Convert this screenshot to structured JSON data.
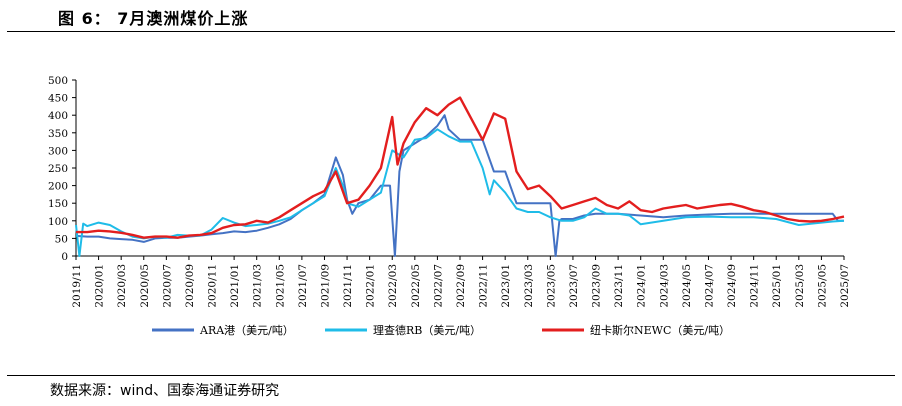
{
  "header": {
    "title": "图 6： 7月澳洲煤价上涨"
  },
  "footer": {
    "source": "数据来源：wind、国泰海通证券研究"
  },
  "chart_data": {
    "type": "line",
    "title": "",
    "xlabel": "",
    "ylabel": "",
    "ylim": [
      0,
      500
    ],
    "yticks": [
      0,
      50,
      100,
      150,
      200,
      250,
      300,
      350,
      400,
      450,
      500
    ],
    "xlim": [
      "2019-11",
      "2025-07"
    ],
    "xticks": [
      "2019/11",
      "2020/01",
      "2020/03",
      "2020/05",
      "2020/07",
      "2020/09",
      "2020/11",
      "2021/01",
      "2021/03",
      "2021/05",
      "2021/07",
      "2021/09",
      "2021/11",
      "2022/01",
      "2022/03",
      "2022/05",
      "2022/07",
      "2022/09",
      "2022/11",
      "2023/01",
      "2023/03",
      "2023/05",
      "2023/07",
      "2023/09",
      "2023/11",
      "2024/01",
      "2024/03",
      "2024/05",
      "2024/07",
      "2024/09",
      "2024/11",
      "2025/01",
      "2025/03",
      "2025/05",
      "2025/07"
    ],
    "grid": false,
    "legend": "bottom",
    "series": [
      {
        "name": "ARA港（美元/吨）",
        "color": "#4472C4",
        "points": [
          [
            "2019-11",
            57
          ],
          [
            "2019-12",
            55
          ],
          [
            "2020-01",
            55
          ],
          [
            "2020-02",
            50
          ],
          [
            "2020-03",
            48
          ],
          [
            "2020-04",
            46
          ],
          [
            "2020-05",
            40
          ],
          [
            "2020-06",
            50
          ],
          [
            "2020-07",
            52
          ],
          [
            "2020-08",
            52
          ],
          [
            "2020-09",
            55
          ],
          [
            "2020-10",
            58
          ],
          [
            "2020-11",
            62
          ],
          [
            "2020-12",
            65
          ],
          [
            "2021-01",
            70
          ],
          [
            "2021-02",
            68
          ],
          [
            "2021-03",
            72
          ],
          [
            "2021-04",
            80
          ],
          [
            "2021-05",
            90
          ],
          [
            "2021-06",
            105
          ],
          [
            "2021-07",
            130
          ],
          [
            "2021-08",
            150
          ],
          [
            "2021-09",
            175
          ],
          [
            "2021-10",
            280
          ],
          [
            "2021-10-20",
            230
          ],
          [
            "2021-11",
            160
          ],
          [
            "2021-11-15",
            120
          ],
          [
            "2021-12",
            150
          ],
          [
            "2022-01",
            160
          ],
          [
            "2022-02",
            200
          ],
          [
            "2022-02-25",
            200
          ],
          [
            "2022-03-08",
            0
          ],
          [
            "2022-03-20",
            240
          ],
          [
            "2022-04",
            300
          ],
          [
            "2022-05",
            320
          ],
          [
            "2022-06",
            340
          ],
          [
            "2022-07",
            370
          ],
          [
            "2022-07-20",
            400
          ],
          [
            "2022-08",
            360
          ],
          [
            "2022-09",
            330
          ],
          [
            "2022-10",
            330
          ],
          [
            "2022-11",
            330
          ],
          [
            "2022-12",
            240
          ],
          [
            "2023-01",
            240
          ],
          [
            "2023-02",
            150
          ],
          [
            "2023-03",
            150
          ],
          [
            "2023-04",
            150
          ],
          [
            "2023-05",
            150
          ],
          [
            "2023-05-15",
            0
          ],
          [
            "2023-05-25",
            100
          ],
          [
            "2023-06",
            105
          ],
          [
            "2023-07",
            105
          ],
          [
            "2023-08",
            115
          ],
          [
            "2023-09",
            120
          ],
          [
            "2023-11",
            120
          ],
          [
            "2024-01",
            115
          ],
          [
            "2024-03",
            110
          ],
          [
            "2024-05",
            115
          ],
          [
            "2024-07",
            118
          ],
          [
            "2024-09",
            120
          ],
          [
            "2024-11",
            120
          ],
          [
            "2025-01",
            120
          ],
          [
            "2025-03",
            120
          ],
          [
            "2025-05",
            120
          ],
          [
            "2025-06",
            120
          ],
          [
            "2025-06-15",
            100
          ],
          [
            "2025-07",
            100
          ]
        ]
      },
      {
        "name": "理查德RB（美元/吨）",
        "color": "#1FBCE8",
        "points": [
          [
            "2019-11",
            88
          ],
          [
            "2019-11-10",
            0
          ],
          [
            "2019-11-20",
            92
          ],
          [
            "2019-12",
            85
          ],
          [
            "2020-01",
            95
          ],
          [
            "2020-02",
            88
          ],
          [
            "2020-03",
            70
          ],
          [
            "2020-04",
            55
          ],
          [
            "2020-05",
            50
          ],
          [
            "2020-06",
            55
          ],
          [
            "2020-07",
            52
          ],
          [
            "2020-08",
            60
          ],
          [
            "2020-09",
            58
          ],
          [
            "2020-10",
            58
          ],
          [
            "2020-11",
            75
          ],
          [
            "2020-12",
            108
          ],
          [
            "2021-01",
            95
          ],
          [
            "2021-02",
            85
          ],
          [
            "2021-03",
            88
          ],
          [
            "2021-04",
            92
          ],
          [
            "2021-05",
            100
          ],
          [
            "2021-06",
            110
          ],
          [
            "2021-07",
            130
          ],
          [
            "2021-08",
            150
          ],
          [
            "2021-09",
            170
          ],
          [
            "2021-10",
            250
          ],
          [
            "2021-10-20",
            200
          ],
          [
            "2021-11",
            150
          ],
          [
            "2021-12",
            140
          ],
          [
            "2022-01",
            160
          ],
          [
            "2022-02",
            180
          ],
          [
            "2022-03",
            300
          ],
          [
            "2022-04",
            280
          ],
          [
            "2022-05",
            330
          ],
          [
            "2022-06",
            335
          ],
          [
            "2022-07",
            360
          ],
          [
            "2022-08",
            340
          ],
          [
            "2022-09",
            325
          ],
          [
            "2022-10",
            325
          ],
          [
            "2022-11",
            250
          ],
          [
            "2022-11-20",
            175
          ],
          [
            "2022-12",
            215
          ],
          [
            "2023-01",
            180
          ],
          [
            "2023-02",
            135
          ],
          [
            "2023-03",
            125
          ],
          [
            "2023-04",
            125
          ],
          [
            "2023-05",
            110
          ],
          [
            "2023-06",
            100
          ],
          [
            "2023-07",
            100
          ],
          [
            "2023-08",
            110
          ],
          [
            "2023-09",
            135
          ],
          [
            "2023-10",
            120
          ],
          [
            "2023-11",
            120
          ],
          [
            "2023-12",
            115
          ],
          [
            "2024-01",
            90
          ],
          [
            "2024-03",
            100
          ],
          [
            "2024-05",
            110
          ],
          [
            "2024-07",
            112
          ],
          [
            "2024-09",
            110
          ],
          [
            "2024-11",
            110
          ],
          [
            "2025-01",
            105
          ],
          [
            "2025-03",
            88
          ],
          [
            "2025-05",
            95
          ],
          [
            "2025-06",
            98
          ],
          [
            "2025-07",
            100
          ]
        ]
      },
      {
        "name": "纽卡斯尔NEWC（美元/吨）",
        "color": "#E31E1E",
        "points": [
          [
            "2019-11",
            68
          ],
          [
            "2019-12",
            68
          ],
          [
            "2020-01",
            72
          ],
          [
            "2020-02",
            70
          ],
          [
            "2020-03",
            66
          ],
          [
            "2020-04",
            60
          ],
          [
            "2020-05",
            52
          ],
          [
            "2020-06",
            55
          ],
          [
            "2020-07",
            55
          ],
          [
            "2020-08",
            52
          ],
          [
            "2020-09",
            58
          ],
          [
            "2020-10",
            60
          ],
          [
            "2020-11",
            65
          ],
          [
            "2020-12",
            80
          ],
          [
            "2021-01",
            88
          ],
          [
            "2021-02",
            90
          ],
          [
            "2021-03",
            100
          ],
          [
            "2021-04",
            95
          ],
          [
            "2021-05",
            110
          ],
          [
            "2021-06",
            130
          ],
          [
            "2021-07",
            150
          ],
          [
            "2021-08",
            170
          ],
          [
            "2021-09",
            185
          ],
          [
            "2021-10",
            240
          ],
          [
            "2021-11",
            150
          ],
          [
            "2021-12",
            160
          ],
          [
            "2022-01",
            200
          ],
          [
            "2022-02",
            250
          ],
          [
            "2022-03",
            395
          ],
          [
            "2022-03-15",
            260
          ],
          [
            "2022-04",
            320
          ],
          [
            "2022-05",
            380
          ],
          [
            "2022-06",
            420
          ],
          [
            "2022-07",
            400
          ],
          [
            "2022-08",
            430
          ],
          [
            "2022-09",
            450
          ],
          [
            "2022-10",
            390
          ],
          [
            "2022-11",
            330
          ],
          [
            "2022-12",
            405
          ],
          [
            "2023-01",
            390
          ],
          [
            "2023-02",
            240
          ],
          [
            "2023-03",
            190
          ],
          [
            "2023-04",
            200
          ],
          [
            "2023-05",
            170
          ],
          [
            "2023-06",
            135
          ],
          [
            "2023-07",
            145
          ],
          [
            "2023-08",
            155
          ],
          [
            "2023-09",
            165
          ],
          [
            "2023-10",
            145
          ],
          [
            "2023-11",
            135
          ],
          [
            "2023-12",
            155
          ],
          [
            "2024-01",
            130
          ],
          [
            "2024-02",
            125
          ],
          [
            "2024-03",
            135
          ],
          [
            "2024-04",
            140
          ],
          [
            "2024-05",
            145
          ],
          [
            "2024-06",
            135
          ],
          [
            "2024-07",
            140
          ],
          [
            "2024-08",
            145
          ],
          [
            "2024-09",
            148
          ],
          [
            "2024-10",
            140
          ],
          [
            "2024-11",
            130
          ],
          [
            "2024-12",
            125
          ],
          [
            "2025-01",
            115
          ],
          [
            "2025-02",
            105
          ],
          [
            "2025-03",
            100
          ],
          [
            "2025-04",
            98
          ],
          [
            "2025-05",
            100
          ],
          [
            "2025-06",
            105
          ],
          [
            "2025-07",
            112
          ]
        ]
      }
    ]
  }
}
